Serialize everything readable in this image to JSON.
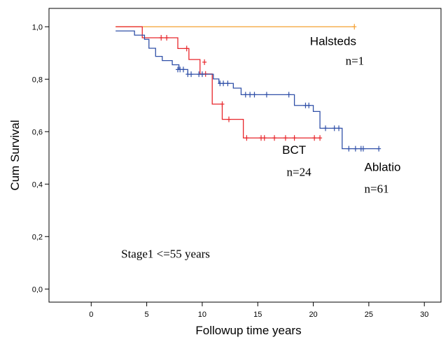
{
  "chart_data": {
    "type": "line",
    "title": "",
    "xlabel": "Followup time years",
    "ylabel": "Cum Survival",
    "xlim": [
      -3.8,
      31.5
    ],
    "ylim": [
      -0.05,
      1.07
    ],
    "x_ticks": [
      0,
      5,
      10,
      15,
      20,
      25,
      30
    ],
    "x_tick_labels": [
      "0",
      "5",
      "10",
      "15",
      "20",
      "25",
      "30"
    ],
    "y_ticks": [
      0.0,
      0.2,
      0.4,
      0.6,
      0.8,
      1.0
    ],
    "y_tick_labels": [
      "0,0",
      "0,2",
      "0,4",
      "0,6",
      "0,8",
      "1,0"
    ],
    "grid": false,
    "step": true,
    "series": [
      {
        "name": "Halsteds",
        "color": "#f5a030",
        "x": [
          2.2,
          23.7
        ],
        "y": [
          1.0,
          1.0
        ],
        "censored": [
          [
            23.7,
            1.0
          ]
        ]
      },
      {
        "name": "BCT",
        "color": "#e8262b",
        "x": [
          2.2,
          4.6,
          7.8,
          8.8,
          9.8,
          10.9,
          11.8,
          13.7,
          20.6
        ],
        "y": [
          1.0,
          0.958,
          0.917,
          0.875,
          0.82,
          0.705,
          0.647,
          0.576,
          0.576
        ],
        "censored": [
          [
            6.3,
            0.958
          ],
          [
            6.8,
            0.958
          ],
          [
            8.6,
            0.917
          ],
          [
            10.2,
            0.865
          ],
          [
            10.3,
            0.82
          ],
          [
            11.8,
            0.705
          ],
          [
            12.4,
            0.647
          ],
          [
            14.0,
            0.576
          ],
          [
            15.3,
            0.576
          ],
          [
            15.6,
            0.576
          ],
          [
            16.5,
            0.576
          ],
          [
            17.5,
            0.576
          ],
          [
            18.3,
            0.576
          ],
          [
            20.1,
            0.576
          ],
          [
            20.6,
            0.576
          ]
        ]
      },
      {
        "name": "Ablatio",
        "color": "#3050a8",
        "x": [
          2.2,
          3.9,
          4.8,
          5.2,
          5.8,
          6.4,
          7.3,
          7.9,
          8.7,
          9.8,
          11.0,
          11.5,
          12.8,
          13.5,
          18.3,
          20.0,
          20.6,
          22.6,
          25.9
        ],
        "y": [
          0.984,
          0.968,
          0.952,
          0.918,
          0.887,
          0.871,
          0.855,
          0.837,
          0.819,
          0.819,
          0.801,
          0.784,
          0.766,
          0.741,
          0.7,
          0.677,
          0.613,
          0.535,
          0.535
        ],
        "censored": [
          [
            7.8,
            0.837
          ],
          [
            8.0,
            0.837
          ],
          [
            8.3,
            0.837
          ],
          [
            8.7,
            0.819
          ],
          [
            9.0,
            0.819
          ],
          [
            9.7,
            0.819
          ],
          [
            10.0,
            0.819
          ],
          [
            11.6,
            0.784
          ],
          [
            11.9,
            0.784
          ],
          [
            12.3,
            0.784
          ],
          [
            13.9,
            0.741
          ],
          [
            14.3,
            0.741
          ],
          [
            14.7,
            0.741
          ],
          [
            15.8,
            0.741
          ],
          [
            17.8,
            0.741
          ],
          [
            19.3,
            0.7
          ],
          [
            19.6,
            0.7
          ],
          [
            21.1,
            0.613
          ],
          [
            21.9,
            0.613
          ],
          [
            22.3,
            0.613
          ],
          [
            23.2,
            0.535
          ],
          [
            23.8,
            0.535
          ],
          [
            24.3,
            0.535
          ],
          [
            24.5,
            0.535
          ],
          [
            25.9,
            0.535
          ]
        ]
      }
    ],
    "annotations": [
      {
        "id": "halsteds-label",
        "text": "Halsteds",
        "x": 19.7,
        "y": 0.93,
        "font": "sans"
      },
      {
        "id": "halsteds-n",
        "text": "n=1",
        "x": 22.9,
        "y": 0.855,
        "font": "serif"
      },
      {
        "id": "bct-label",
        "text": "BCT",
        "x": 17.2,
        "y": 0.515,
        "font": "sans"
      },
      {
        "id": "bct-n",
        "text": "n=24",
        "x": 17.6,
        "y": 0.432,
        "font": "serif"
      },
      {
        "id": "ablatio-label",
        "text": "Ablatio",
        "x": 24.6,
        "y": 0.45,
        "font": "sans"
      },
      {
        "id": "ablatio-n",
        "text": "n=61",
        "x": 24.6,
        "y": 0.368,
        "font": "serif"
      },
      {
        "id": "stage-note",
        "text": "Stage1 <=55 years",
        "x": 2.7,
        "y": 0.12,
        "font": "serif"
      }
    ]
  }
}
